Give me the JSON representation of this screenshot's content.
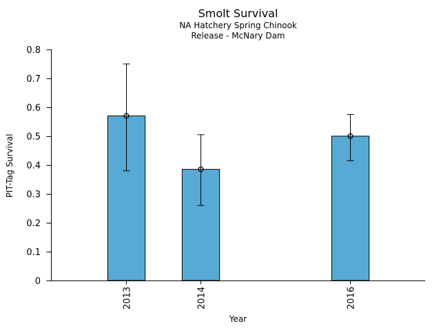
{
  "chart_data": {
    "type": "bar",
    "title": "Smolt Survival",
    "subtitle": [
      "NA Hatchery Spring Chinook",
      "Release - McNary Dam"
    ],
    "xlabel": "Year",
    "ylabel": "PIT-Tag Survival",
    "categories": [
      "2013",
      "2014",
      "2016"
    ],
    "x_numeric": [
      2013,
      2014,
      2016
    ],
    "values": [
      0.57,
      0.385,
      0.5
    ],
    "error_low": [
      0.38,
      0.26,
      0.415
    ],
    "error_high": [
      0.75,
      0.505,
      0.575
    ],
    "xlim": [
      2012,
      2017
    ],
    "ylim": [
      0,
      0.8
    ],
    "yticks": [
      0,
      0.1,
      0.2,
      0.3,
      0.4,
      0.5,
      0.6,
      0.7,
      0.8
    ],
    "ytick_labels": [
      "0",
      "0.1",
      "0.2",
      "0.3",
      "0.4",
      "0.5",
      "0.6",
      "0.7",
      "0.8"
    ],
    "bar_width_years": 0.5,
    "bar_color": "#56AAD3",
    "bar_edge_color": "#000000",
    "error_bar_color": "#000000",
    "marker": "open-circle",
    "grid": false,
    "legend": false
  }
}
